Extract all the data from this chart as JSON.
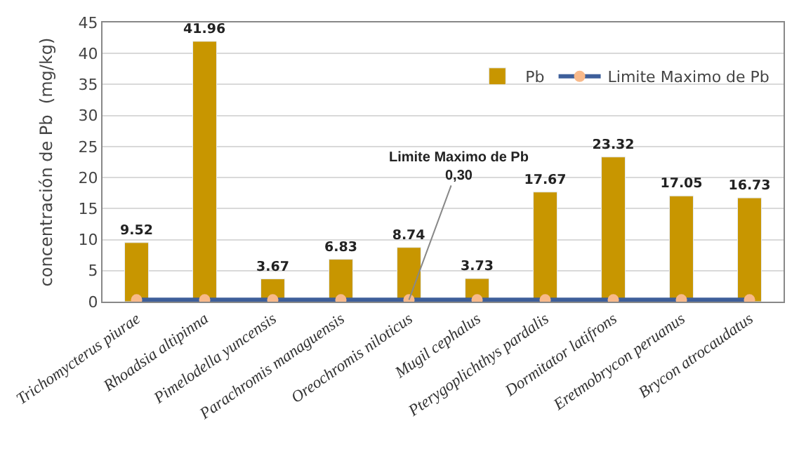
{
  "chart_data": {
    "type": "bar",
    "ylabel": "concentración de Pb  (mg/kg)",
    "categories": [
      "Trichomycterus piurae",
      "Rhoadsia altipinna",
      "Pimelodella yuncensis",
      "Parachromis managuensis",
      "Oreochromis niloticus",
      "Mugil cephalus",
      "Pterygoplichthys pardalis",
      "Dormitator latifrons",
      "Eretmobrycon peruanus",
      "Brycon atrocaudatus"
    ],
    "series": [
      {
        "name": "Pb",
        "color": "#c89600",
        "values": [
          9.52,
          41.96,
          3.67,
          6.83,
          8.74,
          3.73,
          17.67,
          23.32,
          17.05,
          16.73
        ],
        "value_labels": [
          "9.52",
          "41.96",
          "3.67",
          "6.83",
          "8.74",
          "3.73",
          "17.67",
          "23.32",
          "17.05",
          "16.73"
        ]
      },
      {
        "name": "Limite Maximo de Pb",
        "type": "line",
        "color": "#3e5f9a",
        "marker": "circle",
        "values": [
          0.3,
          0.3,
          0.3,
          0.3,
          0.3,
          0.3,
          0.3,
          0.3,
          0.3,
          0.3
        ]
      }
    ],
    "annotations": [
      {
        "text": "Limite Maximo de Pb\n0,30",
        "x": "Oreochromis niloticus",
        "y": 0.3
      }
    ],
    "ylim": [
      0,
      45
    ],
    "yticks": [
      0,
      5,
      10,
      15,
      20,
      25,
      30,
      35,
      40,
      45
    ],
    "grid": "y",
    "legend": "top right"
  }
}
